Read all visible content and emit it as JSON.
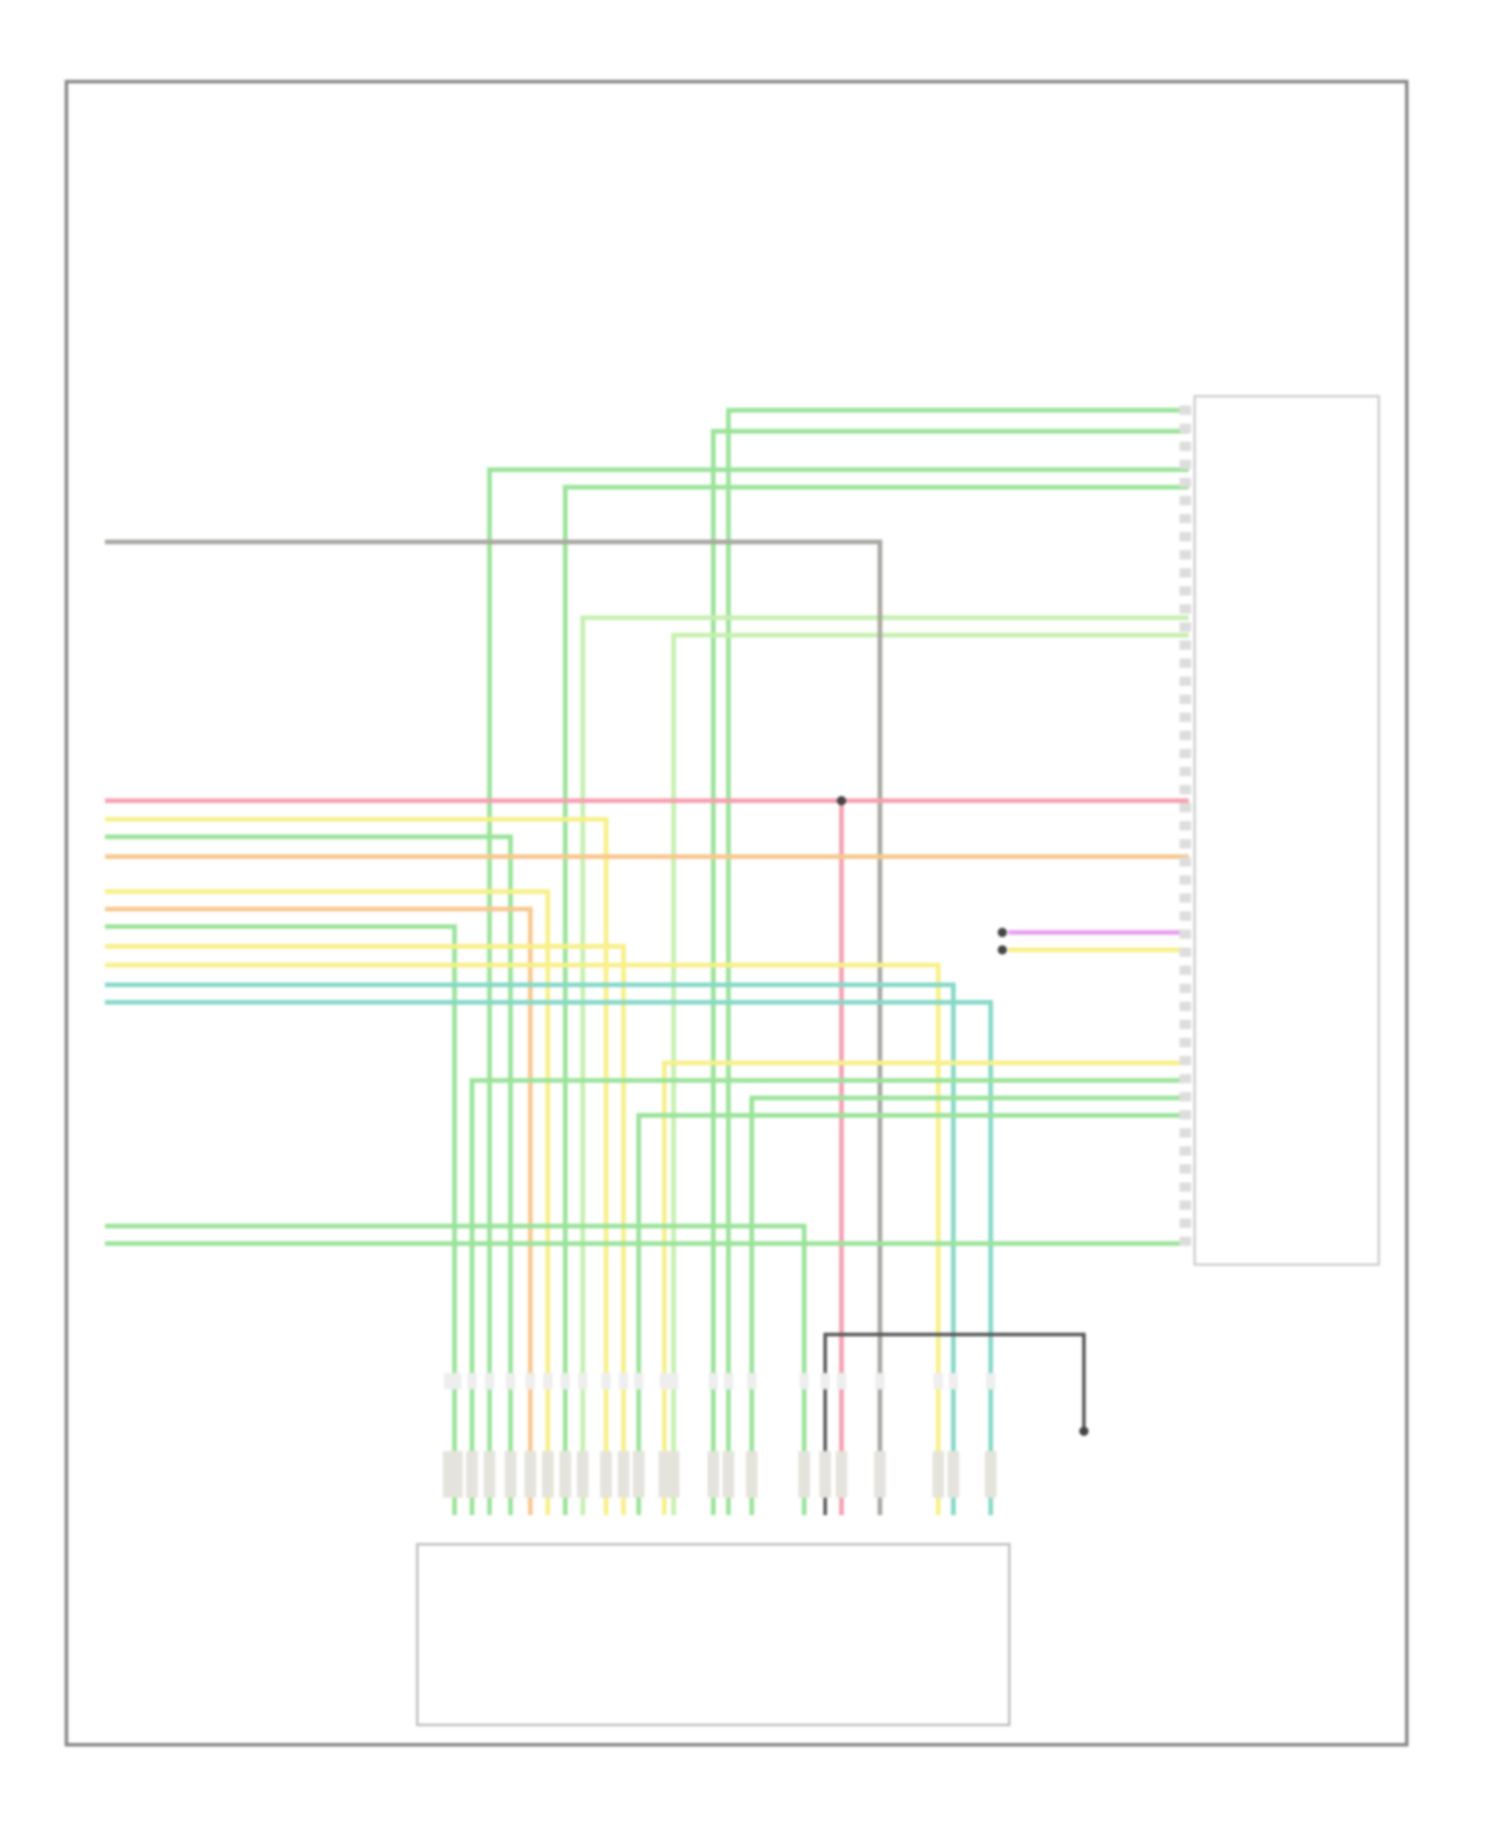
{
  "diagram": {
    "wire_colors": {
      "green": "#9be39b",
      "light_green": "#c6f0b0",
      "pink": "#f5a0b0",
      "yellow": "#f7f08a",
      "orange": "#f8c890",
      "violet": "#e8a0f0",
      "teal": "#88d8c8",
      "gray": "#a8a8a0",
      "ground": "#555555",
      "frame": "#888888"
    }
  }
}
